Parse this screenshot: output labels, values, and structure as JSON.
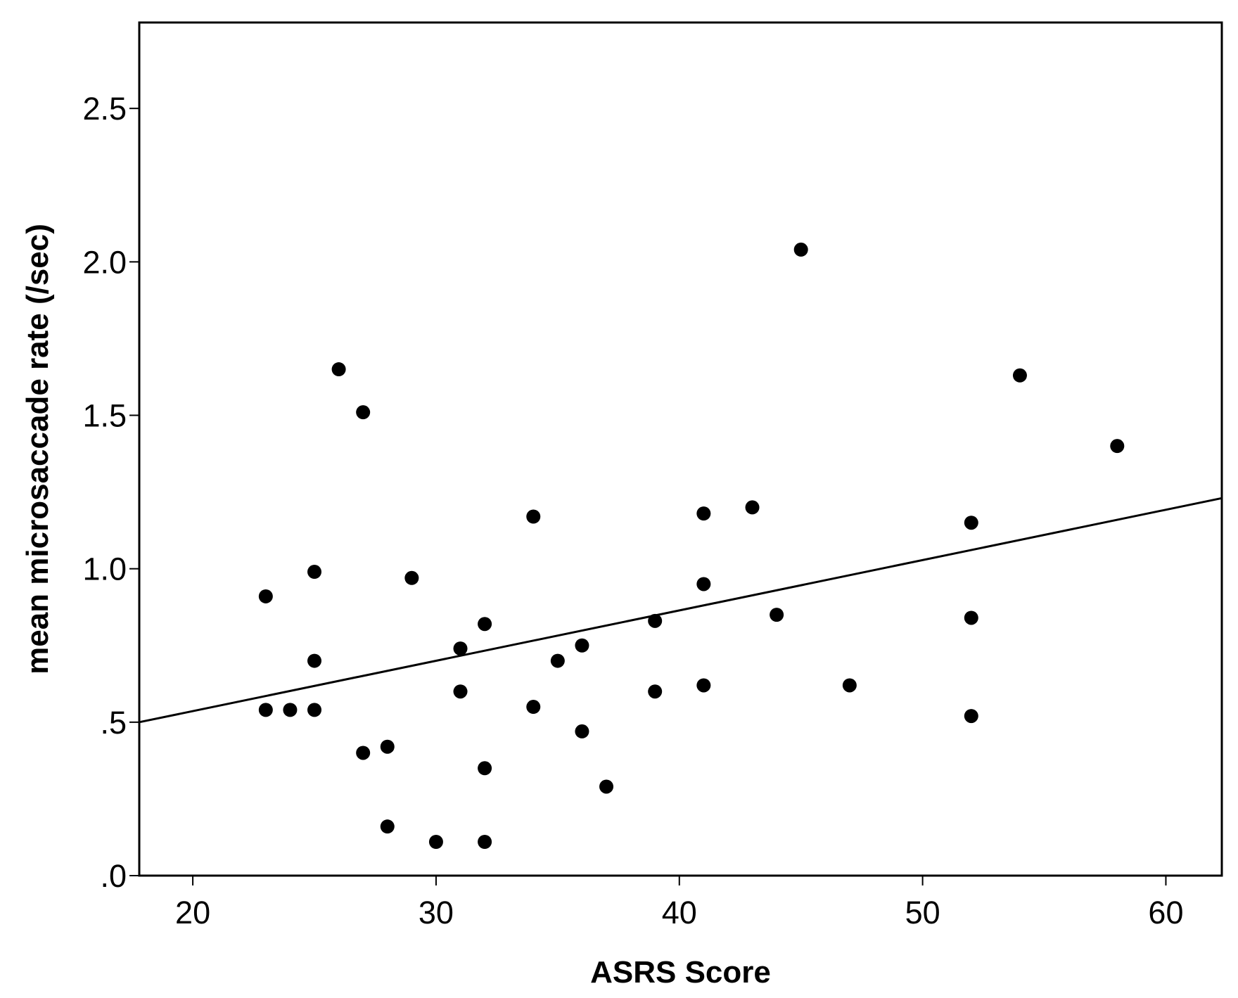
{
  "chart_data": {
    "type": "scatter",
    "title": "",
    "xlabel": "ASRS Score",
    "ylabel": "mean microsaccade rate (/sec)",
    "xlim": [
      17.8,
      62.3
    ],
    "ylim": [
      0,
      2.78
    ],
    "xticks": [
      20,
      30,
      40,
      50,
      60
    ],
    "xtick_labels": [
      "20",
      "30",
      "40",
      "50",
      "60"
    ],
    "yticks": [
      0,
      0.5,
      1.0,
      1.5,
      2.0,
      2.5
    ],
    "ytick_labels": [
      ".0",
      ".5",
      "1.0",
      "1.5",
      "2.0",
      "2.5"
    ],
    "grid": false,
    "legend": "none",
    "series": [
      {
        "points": [
          [
            23,
            0.91
          ],
          [
            23,
            0.54
          ],
          [
            24,
            0.54
          ],
          [
            25,
            0.99
          ],
          [
            25,
            0.7
          ],
          [
            25,
            0.54
          ],
          [
            26,
            1.65
          ],
          [
            27,
            1.51
          ],
          [
            27,
            0.4
          ],
          [
            28,
            0.42
          ],
          [
            28,
            0.16
          ],
          [
            29,
            0.97
          ],
          [
            30,
            0.11
          ],
          [
            31,
            0.74
          ],
          [
            31,
            0.6
          ],
          [
            32,
            0.82
          ],
          [
            32,
            0.35
          ],
          [
            32,
            0.11
          ],
          [
            34,
            1.17
          ],
          [
            34,
            0.55
          ],
          [
            35,
            0.7
          ],
          [
            36,
            0.75
          ],
          [
            36,
            0.47
          ],
          [
            37,
            0.29
          ],
          [
            39,
            0.83
          ],
          [
            39,
            0.6
          ],
          [
            41,
            1.18
          ],
          [
            41,
            0.95
          ],
          [
            41,
            0.62
          ],
          [
            43,
            1.2
          ],
          [
            44,
            0.85
          ],
          [
            45,
            2.04
          ],
          [
            47,
            0.62
          ],
          [
            52,
            1.15
          ],
          [
            52,
            0.84
          ],
          [
            52,
            0.52
          ],
          [
            54,
            1.63
          ],
          [
            58,
            1.4
          ]
        ]
      }
    ],
    "fit_line": {
      "x": [
        17.8,
        62.3
      ],
      "y": [
        0.5,
        1.23
      ]
    },
    "colors": {
      "points": "#000000",
      "line": "#000000",
      "axes": "#000000",
      "background": "#ffffff"
    }
  }
}
